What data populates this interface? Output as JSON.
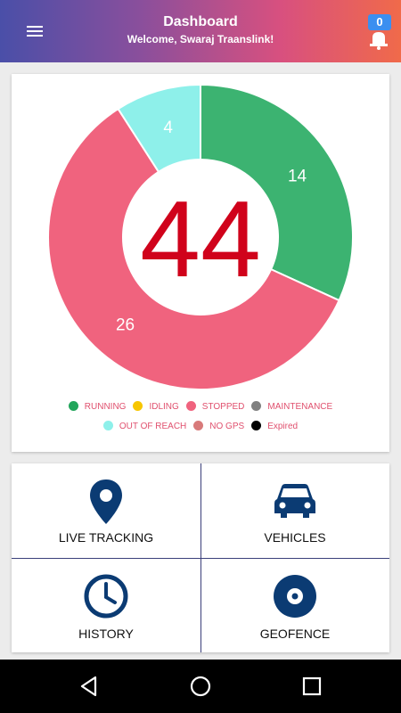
{
  "appbar": {
    "title": "Dashboard",
    "subtitle": "Welcome, Swaraj Traanslink!",
    "notification_count": "0"
  },
  "chart_data": {
    "type": "pie",
    "center_label": "44",
    "slices": [
      {
        "name": "RUNNING",
        "value": 14,
        "label": "14",
        "color": "#3cb371"
      },
      {
        "name": "STOPPED",
        "value": 26,
        "label": "26",
        "color": "#f0637e"
      },
      {
        "name": "OUT OF REACH",
        "value": 4,
        "label": "4",
        "color": "#8ef0ea"
      }
    ],
    "legend": [
      {
        "name": "RUNNING",
        "color": "#22a55b"
      },
      {
        "name": "IDLING",
        "color": "#f7c600"
      },
      {
        "name": "STOPPED",
        "color": "#f0637e"
      },
      {
        "name": "MAINTENANCE",
        "color": "#808080"
      },
      {
        "name": "OUT OF REACH",
        "color": "#8ef0ea"
      },
      {
        "name": "NO GPS",
        "color": "#d87a7a"
      },
      {
        "name": "Expired",
        "color": "#000000"
      }
    ],
    "legend_placement": "bottom"
  },
  "tiles": {
    "live_tracking": "LIVE TRACKING",
    "vehicles": "VEHICLES",
    "history": "HISTORY",
    "geofence": "GEOFENCE"
  },
  "colors": {
    "center_text": "#d0021b",
    "icon": "#0b3b73"
  },
  "icons": [
    "menu-icon",
    "bell-icon",
    "location-pin-icon",
    "car-icon",
    "clock-icon",
    "disc-icon",
    "back-icon",
    "home-icon",
    "recents-icon"
  ]
}
